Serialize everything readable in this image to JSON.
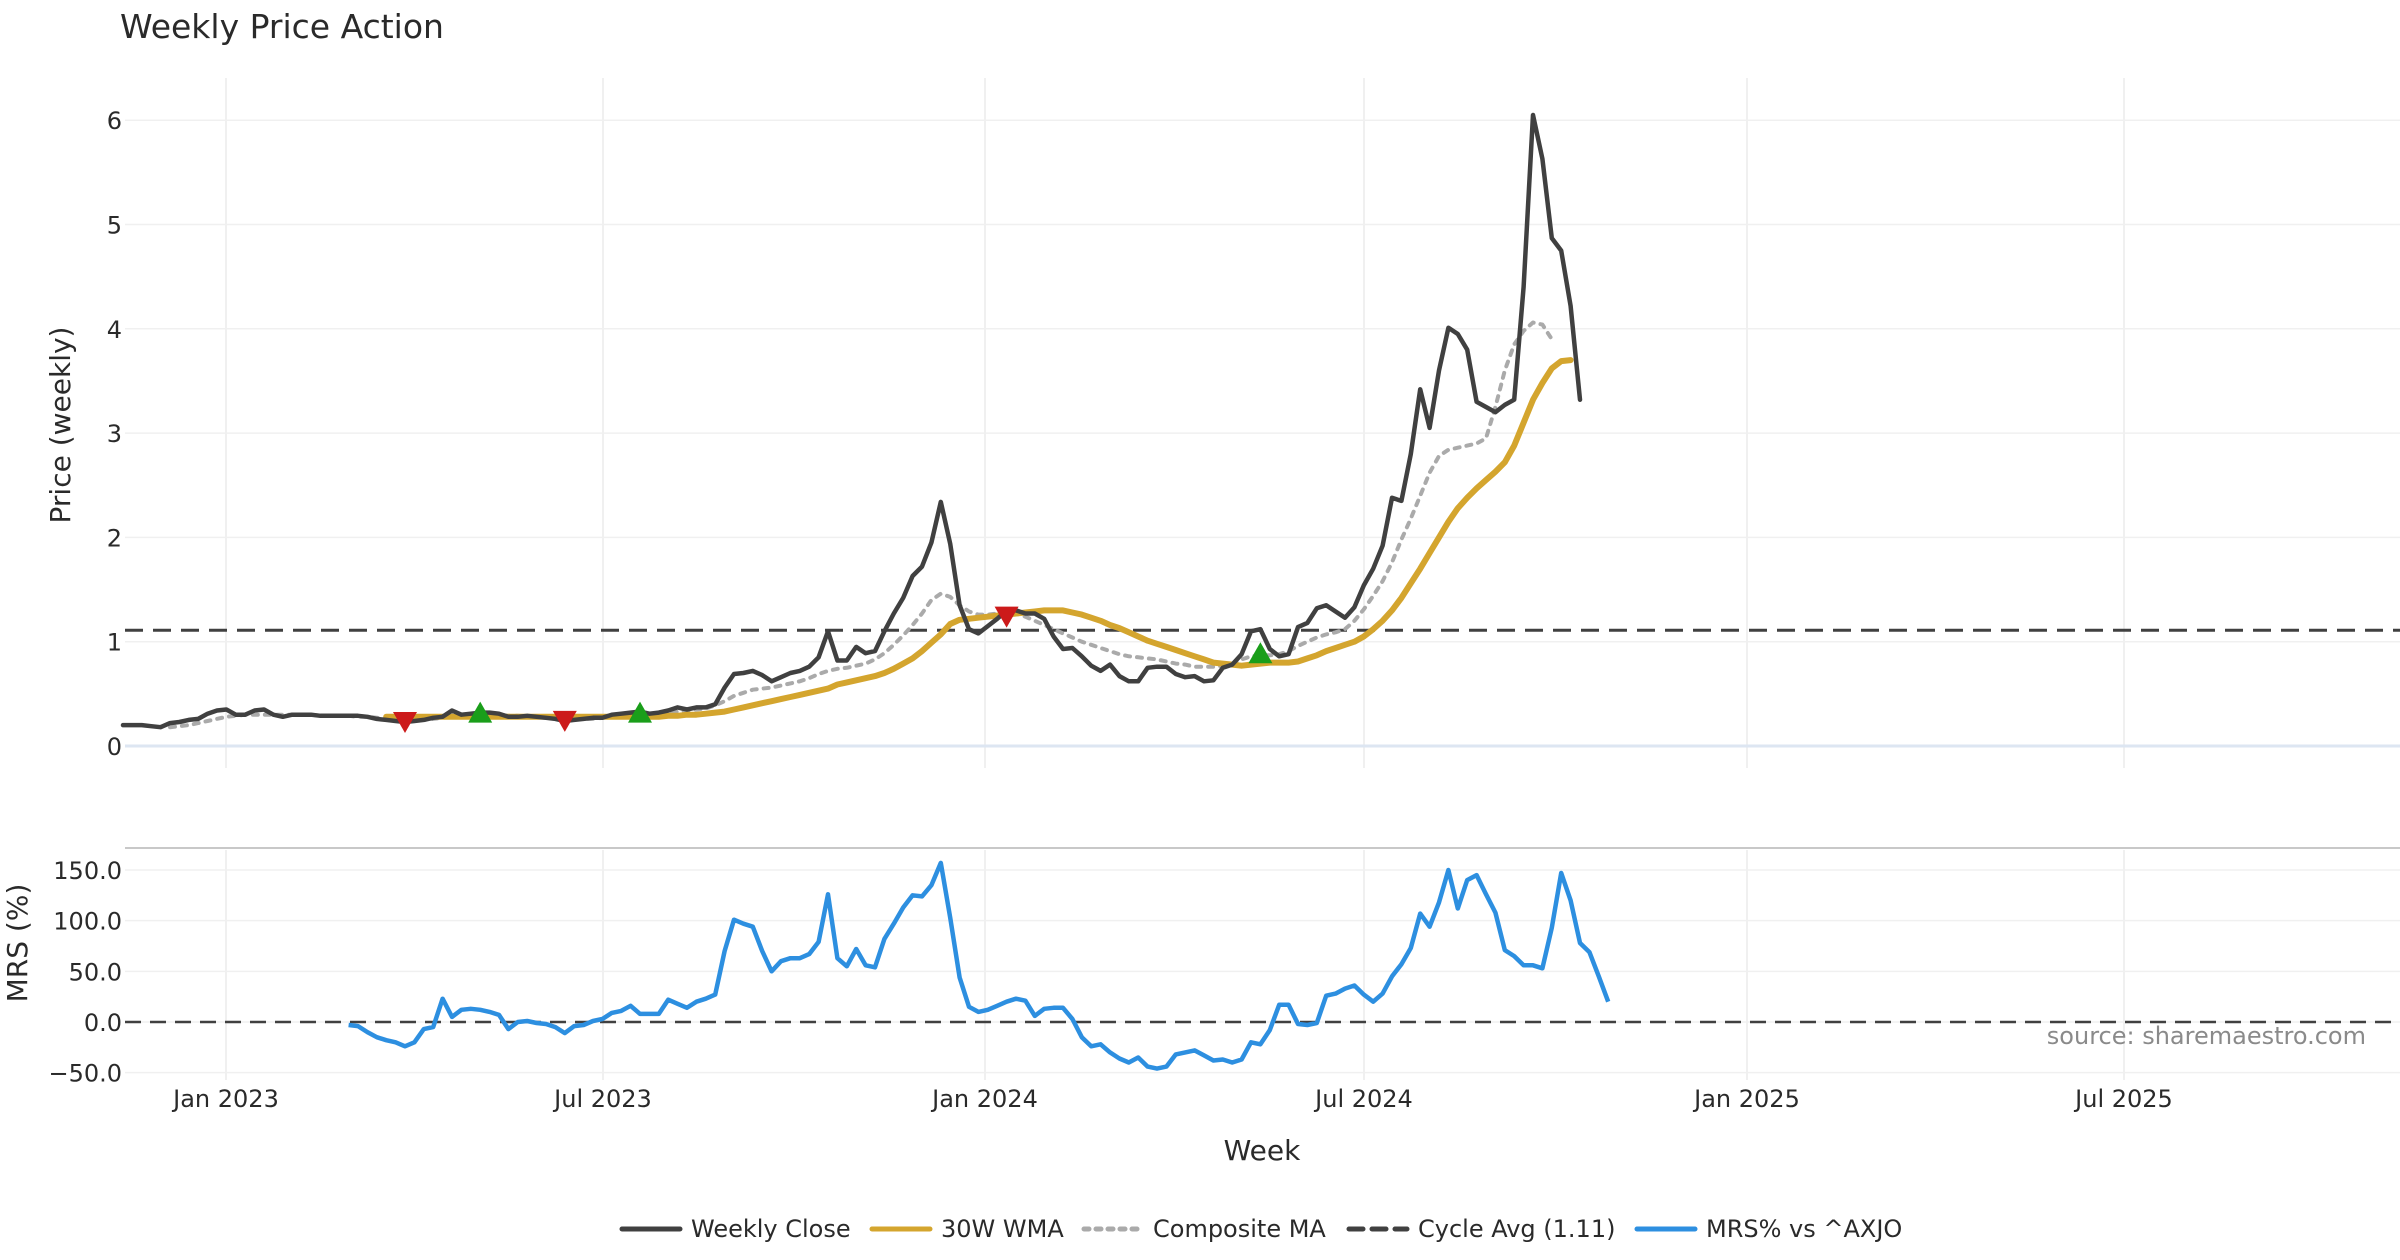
{
  "chart_data": {
    "type": "line",
    "title": "Weekly Price Action",
    "source": "source: sharemaestro.com",
    "xlabel": "Week",
    "x_tick_labels": [
      "Jan 2023",
      "Jul 2023",
      "Jan 2024",
      "Jul 2024",
      "Jan 2025",
      "Jul 2025"
    ],
    "price_panel": {
      "ylabel": "Price (weekly)",
      "ylim": [
        0,
        6.4
      ],
      "y_ticks": [
        "0",
        "1",
        "2",
        "3",
        "4",
        "5",
        "6"
      ],
      "cycle_avg": 1.11,
      "series": [
        {
          "name": "Weekly Close",
          "color": "#404040",
          "style": "solid",
          "values": [
            0.2,
            0.2,
            0.2,
            0.19,
            0.18,
            0.22,
            0.23,
            0.25,
            0.26,
            0.31,
            0.34,
            0.35,
            0.3,
            0.3,
            0.34,
            0.35,
            0.3,
            0.28,
            0.3,
            0.3,
            0.3,
            0.29,
            0.29,
            0.29,
            0.29,
            0.29,
            0.28,
            0.26,
            0.25,
            0.24,
            0.23,
            0.24,
            0.25,
            0.27,
            0.28,
            0.34,
            0.3,
            0.31,
            0.32,
            0.32,
            0.31,
            0.28,
            0.28,
            0.29,
            0.28,
            0.27,
            0.26,
            0.24,
            0.25,
            0.26,
            0.27,
            0.27,
            0.3,
            0.31,
            0.32,
            0.33,
            0.31,
            0.32,
            0.34,
            0.37,
            0.35,
            0.37,
            0.37,
            0.4,
            0.56,
            0.69,
            0.7,
            0.72,
            0.68,
            0.62,
            0.66,
            0.7,
            0.72,
            0.76,
            0.85,
            1.1,
            0.82,
            0.82,
            0.95,
            0.89,
            0.91,
            1.1,
            1.27,
            1.42,
            1.63,
            1.72,
            1.95,
            2.34,
            1.94,
            1.35,
            1.12,
            1.08,
            1.15,
            1.22,
            1.3,
            1.3,
            1.27,
            1.27,
            1.22,
            1.05,
            0.93,
            0.94,
            0.86,
            0.77,
            0.72,
            0.78,
            0.67,
            0.62,
            0.62,
            0.75,
            0.76,
            0.76,
            0.69,
            0.66,
            0.67,
            0.62,
            0.63,
            0.75,
            0.78,
            0.88,
            1.1,
            1.12,
            0.93,
            0.86,
            0.88,
            1.14,
            1.18,
            1.32,
            1.35,
            1.29,
            1.23,
            1.33,
            1.54,
            1.7,
            1.92,
            2.38,
            2.35,
            2.8,
            3.42,
            3.05,
            3.6,
            4.01,
            3.95,
            3.8,
            3.3,
            3.25,
            3.2,
            3.27,
            3.32,
            4.4,
            6.05,
            5.63,
            4.87,
            4.75,
            4.22,
            3.32
          ]
        },
        {
          "name": "30W WMA",
          "color": "#d4a52e",
          "style": "solid",
          "values": [
            null,
            null,
            null,
            null,
            null,
            null,
            null,
            null,
            null,
            null,
            null,
            null,
            null,
            null,
            null,
            null,
            null,
            null,
            null,
            null,
            null,
            null,
            null,
            null,
            null,
            null,
            null,
            null,
            0.28,
            0.28,
            0.28,
            0.28,
            0.28,
            0.28,
            0.28,
            0.28,
            0.28,
            0.28,
            0.28,
            0.28,
            0.28,
            0.28,
            0.28,
            0.28,
            0.28,
            0.28,
            0.28,
            0.28,
            0.28,
            0.28,
            0.28,
            0.28,
            0.28,
            0.28,
            0.28,
            0.28,
            0.28,
            0.28,
            0.29,
            0.29,
            0.3,
            0.3,
            0.31,
            0.32,
            0.33,
            0.35,
            0.37,
            0.39,
            0.41,
            0.43,
            0.45,
            0.47,
            0.49,
            0.51,
            0.53,
            0.55,
            0.59,
            0.61,
            0.63,
            0.65,
            0.67,
            0.7,
            0.74,
            0.79,
            0.84,
            0.91,
            0.99,
            1.07,
            1.17,
            1.21,
            1.22,
            1.23,
            1.24,
            1.25,
            1.26,
            1.27,
            1.28,
            1.29,
            1.3,
            1.3,
            1.3,
            1.28,
            1.26,
            1.23,
            1.2,
            1.16,
            1.13,
            1.09,
            1.05,
            1.01,
            0.98,
            0.95,
            0.92,
            0.89,
            0.86,
            0.83,
            0.8,
            0.79,
            0.78,
            0.77,
            0.78,
            0.79,
            0.8,
            0.8,
            0.8,
            0.81,
            0.84,
            0.87,
            0.91,
            0.94,
            0.97,
            1.0,
            1.05,
            1.12,
            1.2,
            1.3,
            1.42,
            1.56,
            1.7,
            1.85,
            2.0,
            2.15,
            2.28,
            2.38,
            2.47,
            2.55,
            2.63,
            2.72,
            2.88,
            3.1,
            3.32,
            3.48,
            3.62,
            3.69,
            3.7
          ]
        },
        {
          "name": "Composite MA",
          "color": "#aaaaaa",
          "style": "dotted",
          "values": [
            null,
            null,
            null,
            null,
            null,
            0.18,
            0.19,
            0.2,
            0.22,
            0.24,
            0.26,
            0.28,
            0.29,
            0.3,
            0.3,
            0.3,
            0.3,
            0.3,
            0.3,
            0.3,
            0.3,
            0.29,
            0.29,
            0.29,
            0.29,
            0.28,
            0.28,
            0.27,
            0.26,
            0.25,
            0.25,
            0.25,
            0.25,
            0.26,
            0.27,
            0.28,
            0.29,
            0.3,
            0.3,
            0.3,
            0.3,
            0.29,
            0.29,
            0.28,
            0.28,
            0.27,
            0.27,
            0.26,
            0.26,
            0.26,
            0.26,
            0.27,
            0.28,
            0.29,
            0.3,
            0.3,
            0.31,
            0.31,
            0.32,
            0.33,
            0.34,
            0.35,
            0.36,
            0.39,
            0.43,
            0.48,
            0.51,
            0.54,
            0.55,
            0.56,
            0.58,
            0.6,
            0.62,
            0.65,
            0.69,
            0.72,
            0.74,
            0.75,
            0.77,
            0.79,
            0.83,
            0.89,
            0.97,
            1.06,
            1.16,
            1.27,
            1.4,
            1.46,
            1.43,
            1.35,
            1.29,
            1.26,
            1.26,
            1.27,
            1.28,
            1.27,
            1.24,
            1.2,
            1.16,
            1.12,
            1.08,
            1.04,
            1.0,
            0.97,
            0.94,
            0.91,
            0.88,
            0.86,
            0.85,
            0.84,
            0.83,
            0.81,
            0.79,
            0.78,
            0.76,
            0.76,
            0.76,
            0.77,
            0.79,
            0.83,
            0.86,
            0.87,
            0.87,
            0.88,
            0.91,
            0.96,
            1.0,
            1.04,
            1.07,
            1.09,
            1.12,
            1.2,
            1.31,
            1.44,
            1.58,
            1.76,
            1.98,
            2.18,
            2.4,
            2.62,
            2.78,
            2.84,
            2.86,
            2.88,
            2.9,
            2.95,
            3.25,
            3.6,
            3.85,
            3.98,
            4.06,
            4.04,
            3.9
          ]
        },
        {
          "name": "Cycle Avg (1.11)",
          "color": "#404040",
          "style": "dashed",
          "values": []
        }
      ],
      "markers": [
        {
          "type": "sell",
          "color": "#cc1a1a",
          "week": 30,
          "value": 0.24
        },
        {
          "type": "buy",
          "color": "#1a9e1a",
          "week": 38,
          "value": 0.31
        },
        {
          "type": "sell",
          "color": "#cc1a1a",
          "week": 47,
          "value": 0.25
        },
        {
          "type": "buy",
          "color": "#1a9e1a",
          "week": 55,
          "value": 0.31
        },
        {
          "type": "sell",
          "color": "#cc1a1a",
          "week": 94,
          "value": 1.25
        },
        {
          "type": "buy",
          "color": "#1a9e1a",
          "week": 121,
          "value": 0.88
        }
      ]
    },
    "mrs_panel": {
      "ylabel": "MRS (%)",
      "ylim": [
        -55,
        162
      ],
      "y_ticks": [
        "150.0",
        "100.0",
        "50.0",
        "0.0",
        "−50.0"
      ],
      "series": [
        {
          "name": "MRS% vs ^AXJO",
          "color": "#2d8fe0",
          "style": "solid",
          "values": [
            null,
            null,
            null,
            null,
            null,
            null,
            null,
            null,
            null,
            null,
            null,
            null,
            null,
            null,
            null,
            null,
            null,
            null,
            null,
            null,
            null,
            null,
            null,
            null,
            -3,
            -4,
            -10,
            -15,
            -18,
            -20,
            -24,
            -20,
            -7,
            -5,
            23,
            5,
            12,
            13,
            12,
            10,
            7,
            -7,
            0,
            1,
            -1,
            -2,
            -5,
            -11,
            -4,
            -3,
            1,
            3,
            9,
            11,
            16,
            8,
            8,
            8,
            22,
            18,
            14,
            20,
            23,
            27,
            70,
            101,
            97,
            94,
            70,
            50,
            60,
            63,
            63,
            67,
            79,
            126,
            63,
            55,
            72,
            56,
            54,
            82,
            97,
            113,
            125,
            124,
            135,
            157,
            103,
            44,
            15,
            10,
            12,
            16,
            20,
            23,
            21,
            6,
            13,
            14,
            14,
            3,
            -15,
            -24,
            -22,
            -30,
            -36,
            -40,
            -35,
            -44,
            -46,
            -44,
            -32,
            -30,
            -28,
            -33,
            -38,
            -37,
            -40,
            -37,
            -20,
            -22,
            -8,
            17,
            17,
            -2,
            -3,
            -1,
            26,
            28,
            33,
            36,
            27,
            20,
            28,
            45,
            57,
            73,
            107,
            94,
            118,
            150,
            112,
            140,
            145,
            126,
            108,
            71,
            65,
            56,
            56,
            53,
            93,
            147,
            120,
            78,
            69,
            45,
            20
          ]
        }
      ]
    },
    "legend": [
      "Weekly Close",
      "30W WMA",
      "Composite MA",
      "Cycle Avg (1.11)",
      "MRS% vs ^AXJO"
    ],
    "legend_position": "bottom-center"
  }
}
